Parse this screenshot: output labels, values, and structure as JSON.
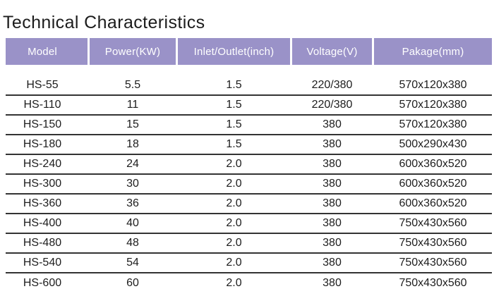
{
  "title": "Technical Characteristics",
  "table": {
    "columns": [
      {
        "label": "Model"
      },
      {
        "label": "Power(KW)"
      },
      {
        "label": "Inlet/Outlet(inch)"
      },
      {
        "label": "Voltage(V)"
      },
      {
        "label": "Pakage(mm)"
      }
    ],
    "rows": [
      [
        "HS-55",
        "5.5",
        "1.5",
        "220/380",
        "570x120x380"
      ],
      [
        "HS-110",
        "11",
        "1.5",
        "220/380",
        "570x120x380"
      ],
      [
        "HS-150",
        "15",
        "1.5",
        "380",
        "570x120x380"
      ],
      [
        "HS-180",
        "18",
        "1.5",
        "380",
        "500x290x430"
      ],
      [
        "HS-240",
        "24",
        "2.0",
        "380",
        "600x360x520"
      ],
      [
        "HS-300",
        "30",
        "2.0",
        "380",
        "600x360x520"
      ],
      [
        "HS-360",
        "36",
        "2.0",
        "380",
        "600x360x520"
      ],
      [
        "HS-400",
        "40",
        "2.0",
        "380",
        "750x430x560"
      ],
      [
        "HS-480",
        "48",
        "2.0",
        "380",
        "750x430x560"
      ],
      [
        "HS-540",
        "54",
        "2.0",
        "380",
        "750x430x560"
      ],
      [
        "HS-600",
        "60",
        "2.0",
        "380",
        "750x430x560"
      ]
    ]
  },
  "colors": {
    "background": "#ffffff",
    "header_bg": "#9a92c8",
    "header_text": "#ffffff",
    "title_text": "#1c1c1c",
    "row_text": "#1d1d1d",
    "row_line": "#333333"
  }
}
